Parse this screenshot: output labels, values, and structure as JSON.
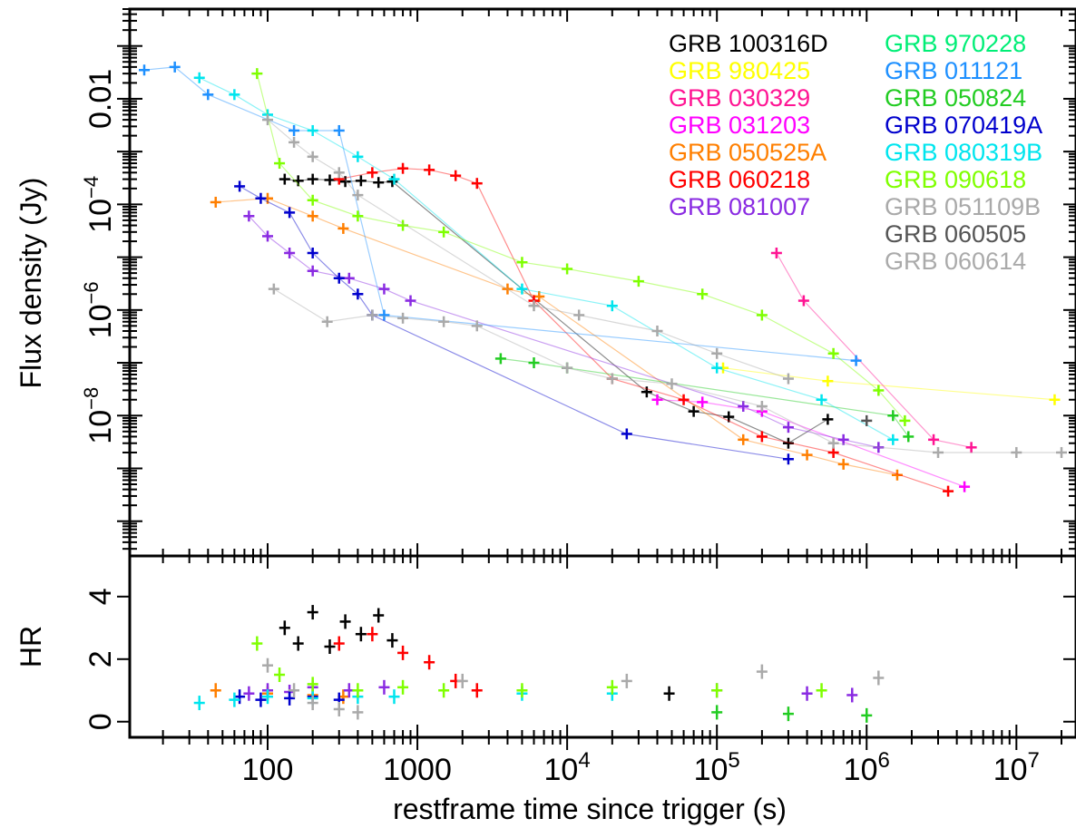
{
  "chart_data": {
    "type": "scatter",
    "xlabel": "restframe time since trigger (s)",
    "xscale": "log",
    "xlim": [
      12,
      25000000
    ],
    "x_ticks": [
      {
        "v": 100,
        "label": "100",
        "sup": ""
      },
      {
        "v": 1000,
        "label": "1000",
        "sup": ""
      },
      {
        "v": 10000,
        "label": "10",
        "sup": "4"
      },
      {
        "v": 100000,
        "label": "10",
        "sup": "5"
      },
      {
        "v": 1000000,
        "label": "10",
        "sup": "6"
      },
      {
        "v": 10000000,
        "label": "10",
        "sup": "7"
      }
    ],
    "panels": [
      {
        "id": "flux",
        "ylabel": "Flux density (Jy)",
        "yscale": "log",
        "ylim": [
          2.2e-11,
          0.5
        ],
        "y_ticks": [
          {
            "v": 0.01,
            "label": "0.01",
            "sup": ""
          },
          {
            "v": 0.0001,
            "label": "10",
            "sup": "−4"
          },
          {
            "v": 1e-06,
            "label": "10",
            "sup": "−6"
          },
          {
            "v": 1e-08,
            "label": "10",
            "sup": "−8"
          }
        ]
      },
      {
        "id": "hr",
        "ylabel": "HR",
        "yscale": "linear",
        "ylim": [
          -0.5,
          5.3
        ],
        "y_ticks": [
          {
            "v": 0,
            "label": "0",
            "sup": ""
          },
          {
            "v": 2,
            "label": "2",
            "sup": ""
          },
          {
            "v": 4,
            "label": "4",
            "sup": ""
          }
        ]
      }
    ],
    "legend_placement": "top-right",
    "series": [
      {
        "name": "GRB 100316D",
        "color": "#000000",
        "flux": [
          [
            130,
            0.0003
          ],
          [
            160,
            0.00028
          ],
          [
            200,
            0.0003
          ],
          [
            260,
            0.00029
          ],
          [
            330,
            0.00027
          ],
          [
            420,
            0.00028
          ],
          [
            550,
            0.00026
          ],
          [
            680,
            0.00027
          ],
          [
            34000,
            2.8e-08
          ],
          [
            70000,
            1.2e-08
          ],
          [
            120000,
            9.5e-09
          ],
          [
            300000,
            3e-09
          ],
          [
            550000,
            8.5e-09
          ]
        ],
        "hr": [
          [
            130,
            3
          ],
          [
            160,
            2.5
          ],
          [
            200,
            3.5
          ],
          [
            260,
            2.4
          ],
          [
            330,
            3.2
          ],
          [
            420,
            2.8
          ],
          [
            550,
            3.4
          ],
          [
            680,
            2.6
          ],
          [
            48000,
            0.9
          ]
        ]
      },
      {
        "name": "GRB 980425",
        "color": "#ffff00",
        "flux": [
          [
            110000,
            8e-08
          ],
          [
            550000,
            4.5e-08
          ],
          [
            18000000,
            2e-08
          ]
        ],
        "hr": []
      },
      {
        "name": "GRB 030329",
        "color": "#ff1493",
        "flux": [
          [
            250000,
            1.2e-05
          ],
          [
            380000,
            1.5e-06
          ],
          [
            2800000,
            3.5e-09
          ],
          [
            5000000,
            2.5e-09
          ]
        ],
        "hr": []
      },
      {
        "name": "GRB 031203",
        "color": "#ff00ff",
        "flux": [
          [
            40000,
            2e-08
          ],
          [
            80000,
            1.8e-08
          ],
          [
            200000,
            1.2e-08
          ],
          [
            4500000,
            4.5e-10
          ]
        ],
        "hr": []
      },
      {
        "name": "GRB 050525A",
        "color": "#ff7f00",
        "flux": [
          [
            45,
            0.00011
          ],
          [
            100,
            0.00013
          ],
          [
            200,
            6e-05
          ],
          [
            320,
            3.5e-05
          ],
          [
            4000,
            2.5e-06
          ],
          [
            6500,
            1.8e-06
          ],
          [
            150000,
            3.5e-09
          ],
          [
            400000,
            1.8e-09
          ],
          [
            700000,
            1.2e-09
          ],
          [
            1600000,
            7.5e-10
          ]
        ],
        "hr": [
          [
            45,
            1
          ],
          [
            100,
            0.9
          ],
          [
            200,
            0.85
          ],
          [
            320,
            0.8
          ]
        ]
      },
      {
        "name": "GRB 060218",
        "color": "#ff0000",
        "flux": [
          [
            300,
            0.0003
          ],
          [
            500,
            0.0004
          ],
          [
            800,
            0.00048
          ],
          [
            1200,
            0.00045
          ],
          [
            1800,
            0.00035
          ],
          [
            2500,
            0.00025
          ],
          [
            6000,
            1.5e-06
          ],
          [
            20000,
            5e-08
          ],
          [
            60000,
            2e-08
          ],
          [
            200000,
            4e-09
          ],
          [
            600000,
            2e-09
          ],
          [
            3500000,
            3.7e-10
          ]
        ],
        "hr": [
          [
            300,
            2.5
          ],
          [
            500,
            2.8
          ],
          [
            800,
            2.2
          ],
          [
            1200,
            1.9
          ],
          [
            1800,
            1.3
          ],
          [
            2500,
            1
          ]
        ]
      },
      {
        "name": "GRB 081007",
        "color": "#8a2be2",
        "flux": [
          [
            75,
            6e-05
          ],
          [
            100,
            2.5e-05
          ],
          [
            140,
            1.2e-05
          ],
          [
            200,
            5.5e-06
          ],
          [
            350,
            4e-06
          ],
          [
            600,
            2.5e-06
          ],
          [
            900,
            1.5e-06
          ],
          [
            150000,
            1.5e-08
          ],
          [
            300000,
            6e-09
          ],
          [
            700000,
            3.5e-09
          ],
          [
            1200000,
            2.5e-09
          ]
        ],
        "hr": [
          [
            75,
            0.9
          ],
          [
            100,
            1
          ],
          [
            140,
            0.95
          ],
          [
            200,
            1.1
          ],
          [
            350,
            1
          ],
          [
            600,
            1.1
          ],
          [
            100000,
            1
          ],
          [
            400000,
            0.9
          ],
          [
            800000,
            0.85
          ]
        ]
      },
      {
        "name": "GRB 970228",
        "color": "#00ee76",
        "flux": [],
        "hr": []
      },
      {
        "name": "GRB 011121",
        "color": "#1e90ff",
        "flux": [
          [
            15,
            0.035
          ],
          [
            24,
            0.04
          ],
          [
            40,
            0.012
          ],
          [
            150,
            0.0025
          ],
          [
            300,
            0.0025
          ],
          [
            600,
            8e-07
          ],
          [
            850000,
            1.1e-07
          ]
        ],
        "hr": []
      },
      {
        "name": "GRB 050824",
        "color": "#22cc22",
        "flux": [
          [
            3600,
            1.2e-07
          ],
          [
            6000,
            1e-07
          ],
          [
            10000,
            8e-08
          ],
          [
            1500000,
            1e-08
          ],
          [
            1900000,
            4e-09
          ]
        ],
        "hr": [
          [
            100000,
            0.3
          ],
          [
            300000,
            0.25
          ],
          [
            1000000,
            0.2
          ]
        ]
      },
      {
        "name": "GRB 070419A",
        "color": "#0000cd",
        "flux": [
          [
            65,
            0.00022
          ],
          [
            90,
            0.00013
          ],
          [
            140,
            7e-05
          ],
          [
            200,
            1.2e-05
          ],
          [
            300,
            4e-06
          ],
          [
            400,
            2e-06
          ],
          [
            500,
            8e-07
          ],
          [
            25000,
            4.5e-09
          ],
          [
            300000,
            1.5e-09
          ]
        ],
        "hr": [
          [
            65,
            0.8
          ],
          [
            90,
            0.7
          ],
          [
            140,
            0.75
          ],
          [
            200,
            0.8
          ],
          [
            300,
            0.7
          ]
        ]
      },
      {
        "name": "GRB 080319B",
        "color": "#00e5ee",
        "flux": [
          [
            35,
            0.025
          ],
          [
            60,
            0.012
          ],
          [
            100,
            0.005
          ],
          [
            200,
            0.0025
          ],
          [
            400,
            0.0008
          ],
          [
            700,
            0.0003
          ],
          [
            5000,
            2.5e-06
          ],
          [
            20000,
            1.2e-06
          ],
          [
            100000,
            8e-08
          ],
          [
            500000,
            2e-08
          ],
          [
            1500000,
            3.5e-09
          ]
        ],
        "hr": [
          [
            35,
            0.6
          ],
          [
            60,
            0.7
          ],
          [
            100,
            0.8
          ],
          [
            200,
            0.75
          ],
          [
            400,
            0.8
          ],
          [
            700,
            0.8
          ],
          [
            5000,
            0.9
          ],
          [
            20000,
            0.9
          ]
        ]
      },
      {
        "name": "GRB 090618",
        "color": "#7fff00",
        "flux": [
          [
            85,
            0.03
          ],
          [
            120,
            0.0006
          ],
          [
            200,
            0.00012
          ],
          [
            400,
            6e-05
          ],
          [
            800,
            4e-05
          ],
          [
            1500,
            3e-05
          ],
          [
            5000,
            8e-06
          ],
          [
            10000,
            6e-06
          ],
          [
            30000,
            3.5e-06
          ],
          [
            80000,
            2e-06
          ],
          [
            200000,
            8e-07
          ],
          [
            600000,
            1.5e-07
          ],
          [
            1200000,
            3e-08
          ],
          [
            1800000,
            8e-09
          ]
        ],
        "hr": [
          [
            85,
            2.5
          ],
          [
            120,
            1.5
          ],
          [
            200,
            1.2
          ],
          [
            400,
            1
          ],
          [
            800,
            1.1
          ],
          [
            1500,
            1
          ],
          [
            5000,
            1
          ],
          [
            20000,
            1.1
          ],
          [
            100000,
            1
          ],
          [
            500000,
            1
          ]
        ]
      },
      {
        "name": "GRB 051109B",
        "color": "#a9a9a9",
        "flux": [
          [
            100,
            0.004
          ],
          [
            150,
            0.0015
          ],
          [
            200,
            0.0008
          ],
          [
            300,
            0.0004
          ],
          [
            400,
            0.00015
          ],
          [
            6000,
            1.2e-06
          ],
          [
            12000,
            8e-07
          ],
          [
            40000,
            4e-07
          ],
          [
            100000,
            1.5e-07
          ],
          [
            300000,
            5e-08
          ]
        ],
        "hr": [
          [
            100,
            1.8
          ],
          [
            150,
            1
          ],
          [
            200,
            0.6
          ],
          [
            300,
            0.4
          ],
          [
            400,
            0.3
          ]
        ]
      },
      {
        "name": "GRB 060505",
        "color": "#555555",
        "flux": [
          [
            1000000,
            8e-09
          ]
        ],
        "hr": []
      },
      {
        "name": "GRB 060614",
        "color": "#aaaaaa",
        "flux": [
          [
            110,
            2.5e-06
          ],
          [
            250,
            6e-07
          ],
          [
            500,
            8e-07
          ],
          [
            800,
            7e-07
          ],
          [
            1500,
            6e-07
          ],
          [
            2500,
            5e-07
          ],
          [
            10000,
            8e-08
          ],
          [
            20000,
            5e-08
          ],
          [
            50000,
            4e-08
          ],
          [
            200000,
            1.5e-08
          ],
          [
            600000,
            3e-09
          ],
          [
            3000000,
            2e-09
          ],
          [
            10000000,
            2e-09
          ],
          [
            20000000,
            2e-09
          ]
        ],
        "hr": [
          [
            2000,
            1.3
          ],
          [
            25000,
            1.3
          ],
          [
            200000,
            1.6
          ],
          [
            1200000,
            1.4
          ]
        ]
      }
    ]
  }
}
